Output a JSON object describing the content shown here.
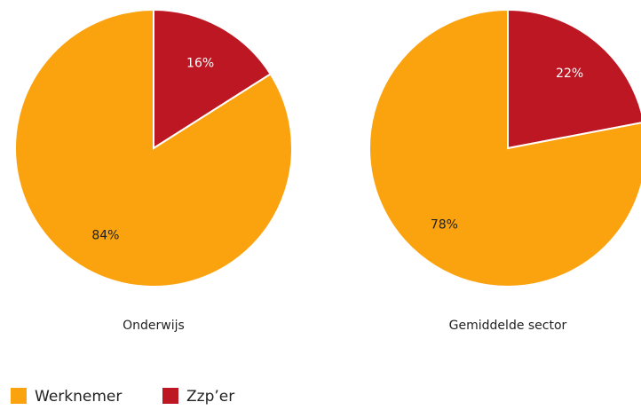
{
  "chart_data": [
    {
      "type": "pie",
      "title": "Onderwijs",
      "values": [
        84,
        16
      ],
      "value_labels": [
        "84%",
        "16%"
      ]
    },
    {
      "type": "pie",
      "title": "Gemiddelde sector",
      "values": [
        78,
        22
      ],
      "value_labels": [
        "78%",
        "22%"
      ]
    }
  ],
  "legend": {
    "labels": [
      "Werknemer",
      "Zzp’er"
    ],
    "colors": [
      "#fba30f",
      "#bd1723"
    ]
  }
}
